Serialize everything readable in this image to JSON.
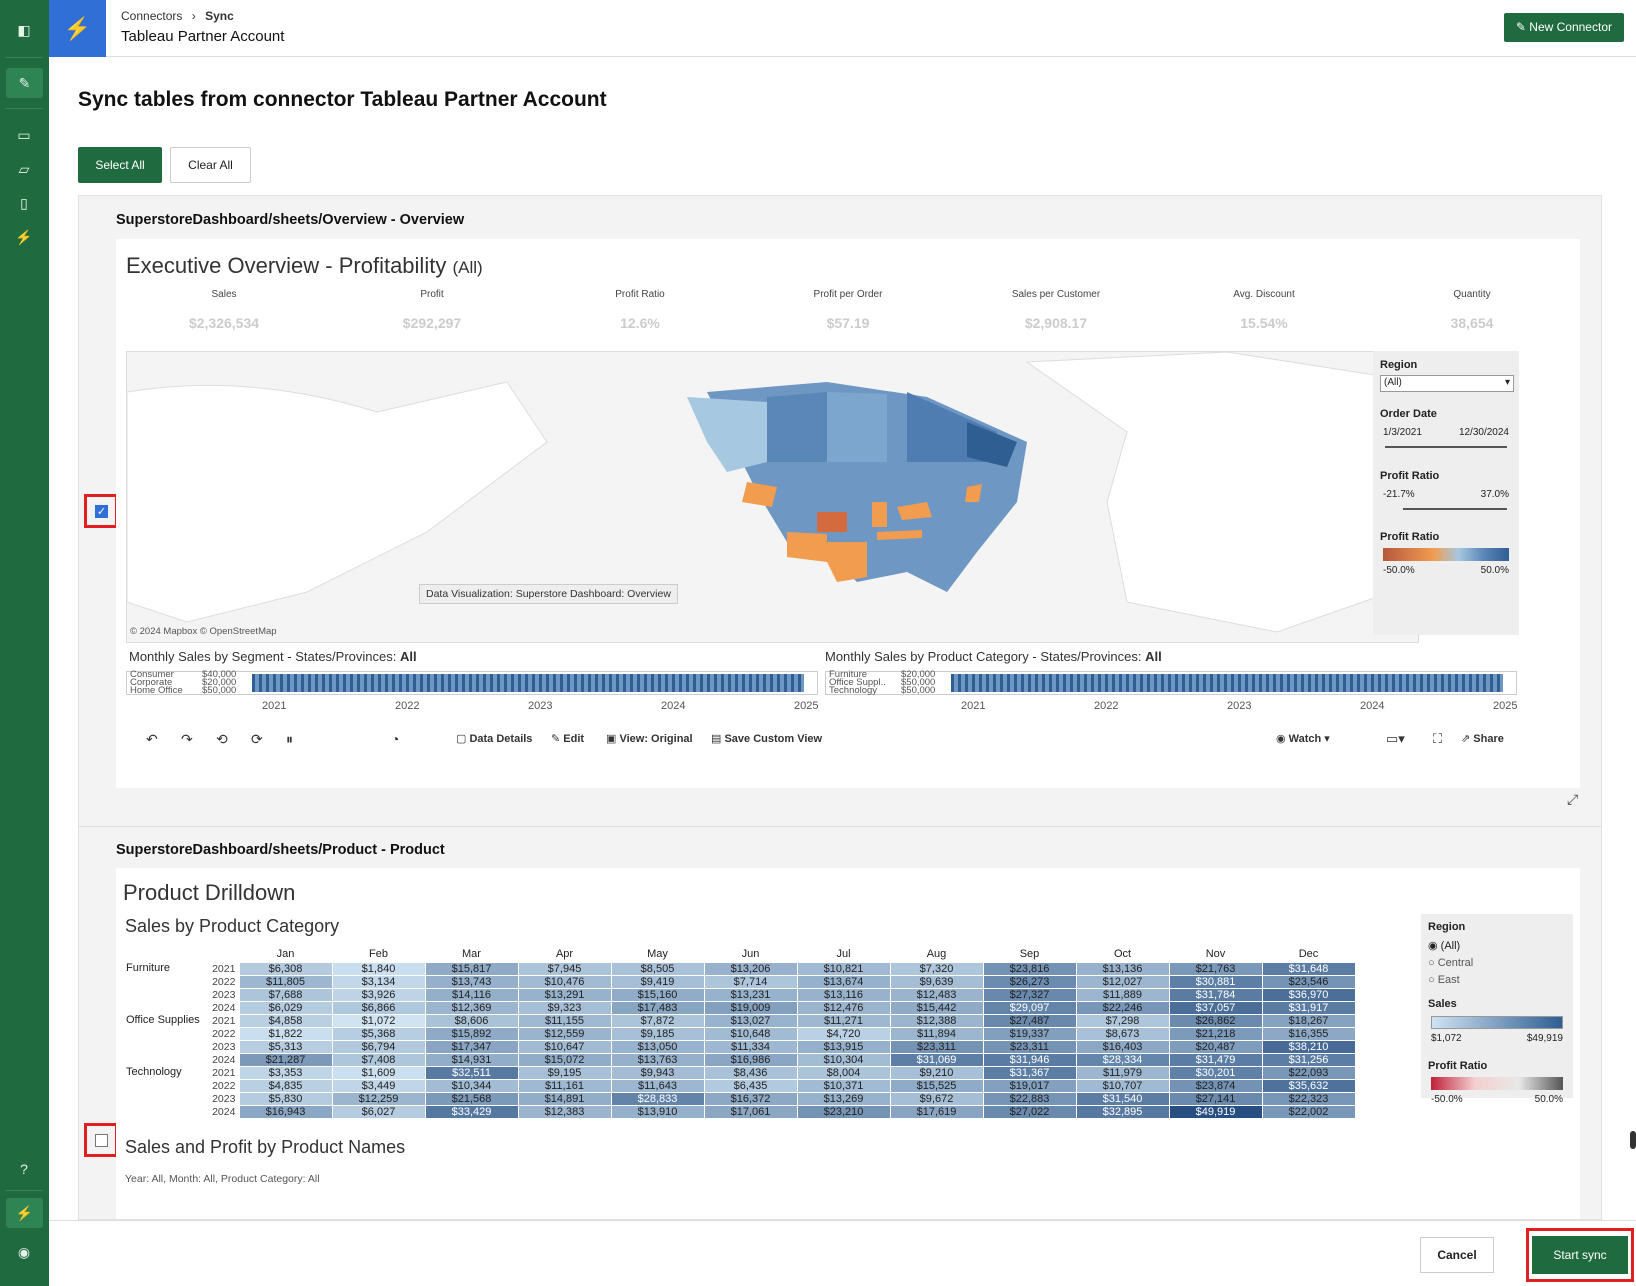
{
  "topbar": {
    "crumb_root": "Connectors",
    "crumb_sep": "›",
    "crumb_current": "Sync",
    "title": "Tableau Partner Account",
    "new_connector": "New Connector"
  },
  "page": {
    "heading": "Sync tables from connector Tableau Partner Account",
    "select_all": "Select All",
    "clear_all": "Clear All"
  },
  "sheet1": {
    "path": "SuperstoreDashboard/sheets/Overview - Overview",
    "checked": true,
    "viz_title": "Executive Overview - Profitability",
    "viz_title_suffix": "(All)",
    "kpis": [
      {
        "label": "Sales",
        "value": "$2,326,534"
      },
      {
        "label": "Profit",
        "value": "$292,297"
      },
      {
        "label": "Profit Ratio",
        "value": "12.6%"
      },
      {
        "label": "Profit per Order",
        "value": "$57.19"
      },
      {
        "label": "Sales per Customer",
        "value": "$2,908.17"
      },
      {
        "label": "Avg. Discount",
        "value": "15.54%"
      },
      {
        "label": "Quantity",
        "value": "38,654"
      }
    ],
    "map_credit": "© 2024 Mapbox © OpenStreetMap",
    "map_tooltip": "Data Visualization: Superstore Dashboard: Overview",
    "filters": {
      "region_label": "Region",
      "region_value": "(All)",
      "order_date_label": "Order Date",
      "date_from": "1/3/2021",
      "date_to": "12/30/2024",
      "pr_label": "Profit Ratio",
      "pr_from": "-21.7%",
      "pr_to": "37.0%",
      "legend_label": "Profit Ratio",
      "legend_min": "-50.0%",
      "legend_max": "50.0%"
    },
    "seg_title": "Monthly Sales by Segment - States/Provinces:",
    "seg_all": "All",
    "seg_rows": [
      "Consumer",
      "Corporate",
      "Home Office"
    ],
    "seg_ticks": [
      "$40,000",
      "$20,000",
      "$50,000"
    ],
    "cat_title": "Monthly Sales by Product Category - States/Provinces:",
    "cat_all": "All",
    "cat_rows": [
      "Furniture",
      "Office Suppl..",
      "Technology"
    ],
    "cat_ticks": [
      "$20,000",
      "$50,000",
      "$50,000"
    ],
    "years": [
      "2021",
      "2022",
      "2023",
      "2024",
      "2025"
    ],
    "toolbar": {
      "data_details": "Data Details",
      "edit": "Edit",
      "view": "View: Original",
      "save": "Save Custom View",
      "watch": "Watch",
      "share": "Share"
    }
  },
  "sheet2": {
    "path": "SuperstoreDashboard/sheets/Product - Product",
    "checked": false,
    "viz_title": "Product Drilldown",
    "sub_title": "Sales by Product Category",
    "months": [
      "Jan",
      "Feb",
      "Mar",
      "Apr",
      "May",
      "Jun",
      "Jul",
      "Aug",
      "Sep",
      "Oct",
      "Nov",
      "Dec"
    ],
    "categories": [
      "Furniture",
      "Office Supplies",
      "Technology"
    ],
    "years": [
      "2021",
      "2022",
      "2023",
      "2024"
    ],
    "rows": [
      [
        "$6,308",
        "$1,840",
        "$15,817",
        "$7,945",
        "$8,505",
        "$13,206",
        "$10,821",
        "$7,320",
        "$23,816",
        "$13,136",
        "$21,763",
        "$31,648"
      ],
      [
        "$11,805",
        "$3,134",
        "$13,743",
        "$10,476",
        "$9,419",
        "$7,714",
        "$13,674",
        "$9,639",
        "$26,273",
        "$12,027",
        "$30,881",
        "$23,546"
      ],
      [
        "$7,688",
        "$3,926",
        "$14,116",
        "$13,291",
        "$15,160",
        "$13,231",
        "$13,116",
        "$12,483",
        "$27,327",
        "$11,889",
        "$31,784",
        "$36,970"
      ],
      [
        "$6,029",
        "$6,866",
        "$12,369",
        "$9,323",
        "$17,483",
        "$19,009",
        "$12,476",
        "$15,442",
        "$29,097",
        "$22,246",
        "$37,057",
        "$31,917"
      ],
      [
        "$4,858",
        "$1,072",
        "$8,606",
        "$11,155",
        "$7,872",
        "$13,027",
        "$11,271",
        "$12,388",
        "$27,487",
        "$7,298",
        "$26,862",
        "$18,267"
      ],
      [
        "$1,822",
        "$5,368",
        "$15,892",
        "$12,559",
        "$9,185",
        "$10,648",
        "$4,720",
        "$11,894",
        "$19,337",
        "$8,673",
        "$21,218",
        "$16,355"
      ],
      [
        "$5,313",
        "$6,794",
        "$17,347",
        "$10,647",
        "$13,050",
        "$11,334",
        "$13,915",
        "$23,311",
        "$23,311",
        "$16,403",
        "$20,487",
        "$38,210"
      ],
      [
        "$21,287",
        "$7,408",
        "$14,931",
        "$15,072",
        "$13,763",
        "$16,986",
        "$10,304",
        "$31,069",
        "$31,946",
        "$28,334",
        "$31,479",
        "$31,256"
      ],
      [
        "$3,353",
        "$1,609",
        "$32,511",
        "$9,195",
        "$9,943",
        "$8,436",
        "$8,004",
        "$9,210",
        "$31,367",
        "$11,979",
        "$30,201",
        "$22,093"
      ],
      [
        "$4,835",
        "$3,449",
        "$10,344",
        "$11,161",
        "$11,643",
        "$6,435",
        "$10,371",
        "$15,525",
        "$19,017",
        "$10,707",
        "$23,874",
        "$35,632"
      ],
      [
        "$5,830",
        "$12,259",
        "$21,568",
        "$14,891",
        "$28,833",
        "$16,372",
        "$13,269",
        "$9,672",
        "$22,883",
        "$31,540",
        "$27,141",
        "$22,323"
      ],
      [
        "$16,943",
        "$6,027",
        "$33,429",
        "$12,383",
        "$13,910",
        "$17,061",
        "$23,210",
        "$17,619",
        "$27,022",
        "$32,895",
        "$49,919",
        "$22,002"
      ]
    ],
    "side": {
      "region_label": "Region",
      "opts": [
        "(All)",
        "Central",
        "East"
      ],
      "sales_label": "Sales",
      "sales_min": "$1,072",
      "sales_max": "$49,919",
      "pr_label": "Profit Ratio",
      "pr_min": "-50.0%",
      "pr_max": "50.0%"
    },
    "sub2_title": "Sales and Profit by Product Names",
    "sub2_filter": "Year: All, Month: All, Product Category: All"
  },
  "footer": {
    "cancel": "Cancel",
    "start": "Start sync"
  }
}
